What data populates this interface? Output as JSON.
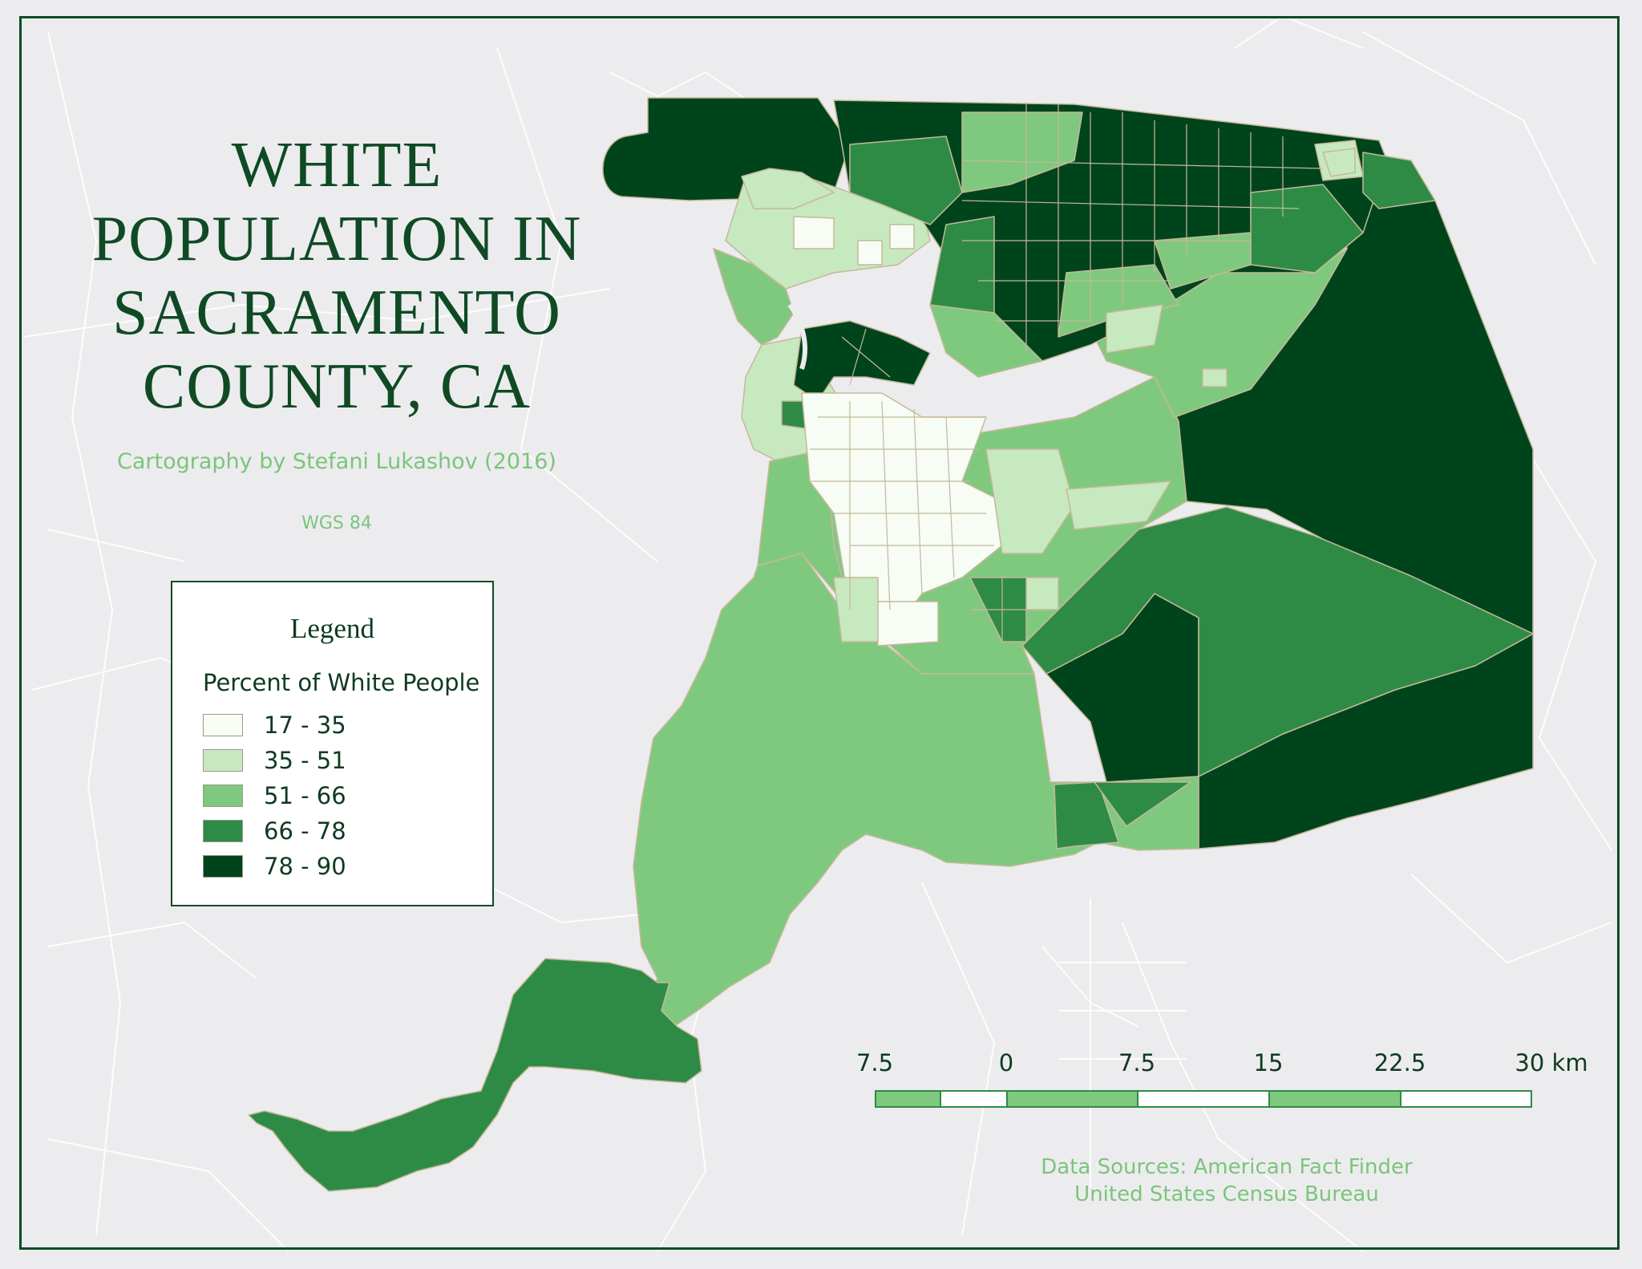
{
  "title_lines": [
    "WHITE",
    "POPULATION IN",
    "SACRAMENTO",
    "COUNTY, CA"
  ],
  "credit": "Cartography by Stefani Lukashov (2016)",
  "crs": "WGS 84",
  "legend": {
    "title": "Legend",
    "subtitle": "Percent of White People",
    "classes": [
      {
        "label": "17 - 35",
        "color": "#f7fcf5"
      },
      {
        "label": "35 - 51",
        "color": "#c7e9c0"
      },
      {
        "label": "51 - 66",
        "color": "#7fc97f"
      },
      {
        "label": "66 - 78",
        "color": "#2e8b46"
      },
      {
        "label": "78 - 90",
        "color": "#00441b"
      }
    ]
  },
  "scale_bar": {
    "labels": [
      "7.5",
      "0",
      "7.5",
      "15",
      "22.5",
      "30 km"
    ]
  },
  "sources": {
    "line1": "Data Sources:   American Fact Finder",
    "line2": "United States Census Bureau"
  },
  "colors": {
    "frame": "#0f4a25",
    "background": "#ececee",
    "roads": "#ffffff"
  }
}
